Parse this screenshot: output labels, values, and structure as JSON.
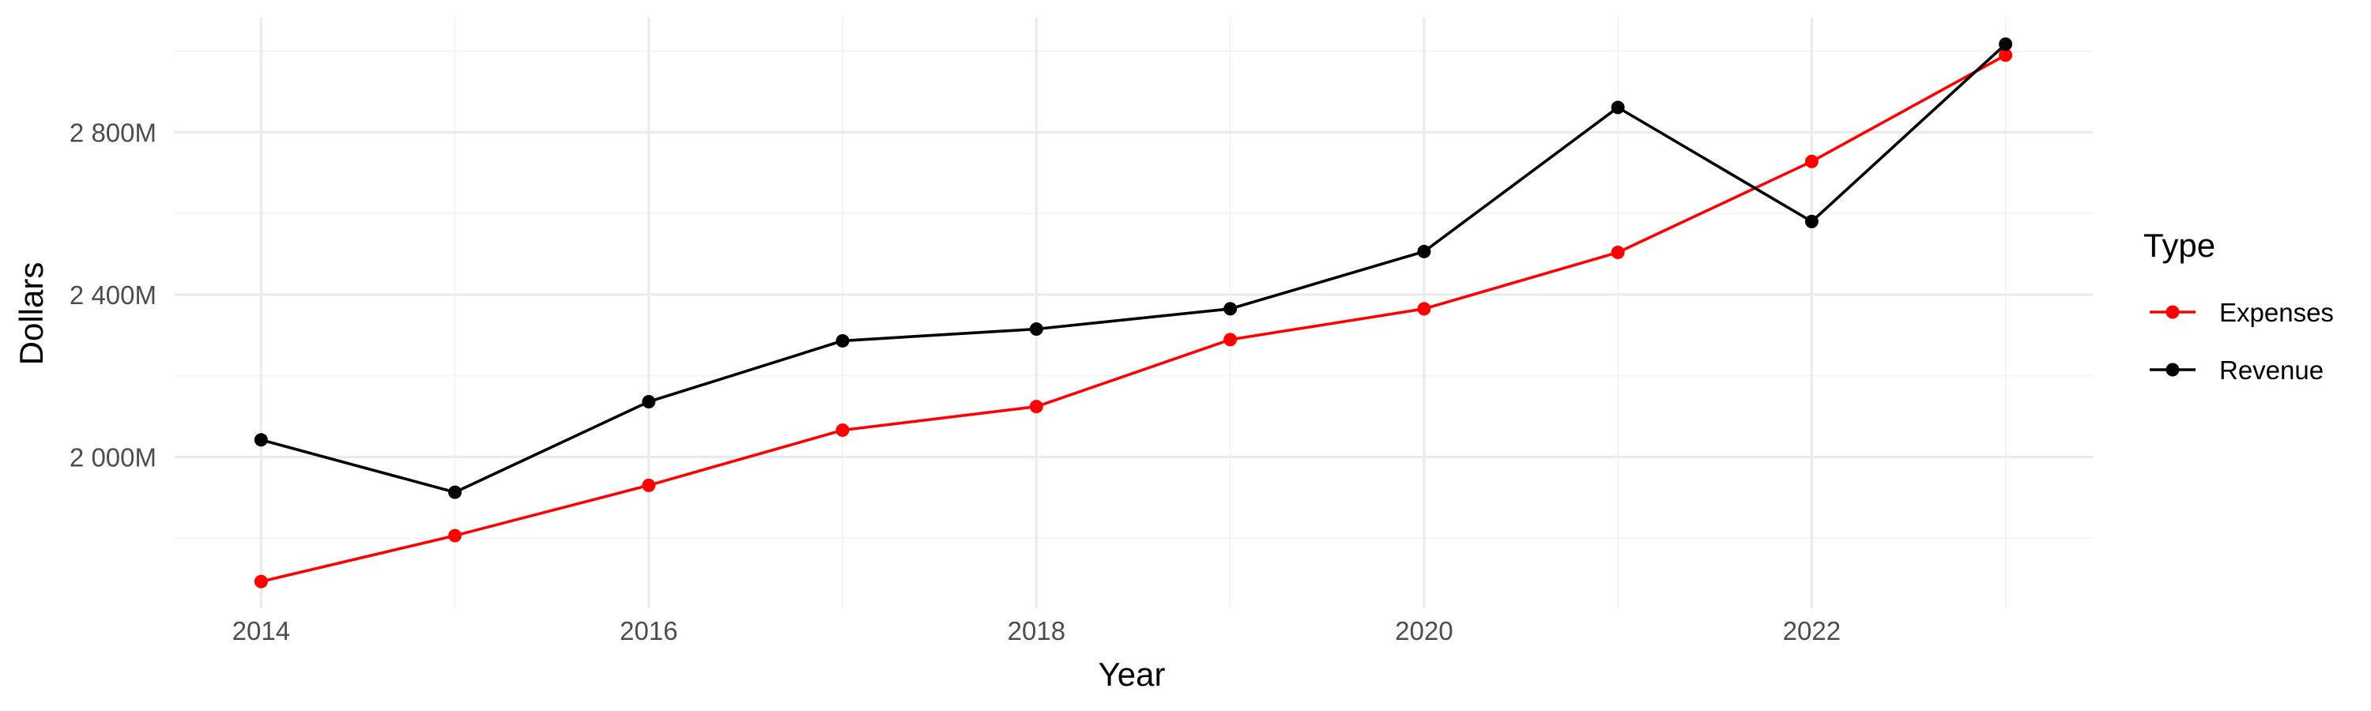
{
  "chart_data": {
    "type": "line",
    "x": [
      2014,
      2015,
      2016,
      2017,
      2018,
      2019,
      2020,
      2021,
      2022,
      2023
    ],
    "series": [
      {
        "name": "Expenses",
        "color": "#ff0000",
        "values": [
          1693,
          1806,
          1930,
          2066,
          2124,
          2289,
          2365,
          2504,
          2728,
          2990
        ]
      },
      {
        "name": "Revenue",
        "color": "#000000",
        "values": [
          2042,
          1913,
          2136,
          2286,
          2315,
          2365,
          2506,
          2861,
          2580,
          3017
        ]
      }
    ],
    "xlabel": "Year",
    "ylabel": "Dollars",
    "legend_title": "Type",
    "legend_position": "right",
    "x_ticks": [
      2014,
      2016,
      2018,
      2020,
      2022
    ],
    "x_tick_labels": [
      "2014",
      "2016",
      "2018",
      "2020",
      "2022"
    ],
    "y_ticks": [
      2000,
      2400,
      2800
    ],
    "y_tick_labels": [
      "2 000M",
      "2 400M",
      "2 800M"
    ],
    "y_minor_ticks": [
      1800,
      2200,
      2600,
      3000
    ],
    "x_minor_ticks": [
      2015,
      2017,
      2019,
      2021,
      2023
    ],
    "xlim": [
      2013.55,
      2023.45
    ],
    "ylim": [
      1627,
      3083
    ],
    "grid": true
  }
}
